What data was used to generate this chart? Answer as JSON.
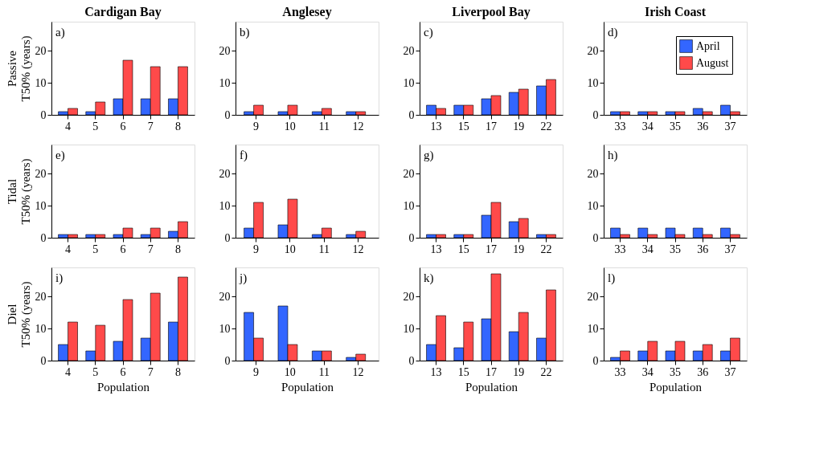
{
  "chart_data": [
    {
      "type": "bar",
      "title": "Cardigan Bay",
      "ylabel": "Passive\nT50%  (years)",
      "annotations": [
        "a)"
      ],
      "categories": [
        "4",
        "5",
        "6",
        "7",
        "8"
      ],
      "ylim": [
        0,
        29
      ],
      "yticks": [
        0,
        10,
        20
      ],
      "grid": false,
      "series": [
        {
          "color": "#3366ff",
          "values": [
            1,
            1,
            5,
            5,
            5
          ]
        },
        {
          "color": "#ff4a4a",
          "values": [
            2,
            4,
            17,
            15,
            15
          ]
        }
      ]
    },
    {
      "type": "bar",
      "title": "Anglesey",
      "annotations": [
        "b)"
      ],
      "categories": [
        "9",
        "10",
        "11",
        "12"
      ],
      "ylim": [
        0,
        29
      ],
      "yticks": [
        0,
        10,
        20
      ],
      "grid": false,
      "series": [
        {
          "color": "#3366ff",
          "values": [
            1,
            1,
            1,
            1
          ]
        },
        {
          "color": "#ff4a4a",
          "values": [
            3,
            3,
            2,
            1
          ]
        }
      ]
    },
    {
      "type": "bar",
      "title": "Liverpool Bay",
      "annotations": [
        "c)"
      ],
      "categories": [
        "13",
        "15",
        "17",
        "19",
        "22"
      ],
      "ylim": [
        0,
        29
      ],
      "yticks": [
        0,
        10,
        20
      ],
      "grid": false,
      "series": [
        {
          "color": "#3366ff",
          "values": [
            3,
            3,
            5,
            7,
            9
          ]
        },
        {
          "color": "#ff4a4a",
          "values": [
            2,
            3,
            6,
            8,
            11
          ]
        }
      ]
    },
    {
      "type": "bar",
      "title": "Irish Coast",
      "annotations": [
        "d)"
      ],
      "categories": [
        "33",
        "34",
        "35",
        "36",
        "37"
      ],
      "ylim": [
        0,
        29
      ],
      "yticks": [
        0,
        10,
        20
      ],
      "grid": false,
      "legend": "top right",
      "series": [
        {
          "name": "April",
          "color": "#3366ff",
          "values": [
            1,
            1,
            1,
            2,
            3
          ]
        },
        {
          "name": "August",
          "color": "#ff4a4a",
          "values": [
            1,
            1,
            1,
            1,
            1
          ]
        }
      ]
    },
    {
      "type": "bar",
      "ylabel": "Tidal\nT50%  (years)",
      "annotations": [
        "e)"
      ],
      "categories": [
        "4",
        "5",
        "6",
        "7",
        "8"
      ],
      "ylim": [
        0,
        29
      ],
      "yticks": [
        0,
        10,
        20
      ],
      "grid": false,
      "series": [
        {
          "color": "#3366ff",
          "values": [
            1,
            1,
            1,
            1,
            2
          ]
        },
        {
          "color": "#ff4a4a",
          "values": [
            1,
            1,
            3,
            3,
            5
          ]
        }
      ]
    },
    {
      "type": "bar",
      "annotations": [
        "f)"
      ],
      "categories": [
        "9",
        "10",
        "11",
        "12"
      ],
      "ylim": [
        0,
        29
      ],
      "yticks": [
        0,
        10,
        20
      ],
      "grid": false,
      "series": [
        {
          "color": "#3366ff",
          "values": [
            3,
            4,
            1,
            1
          ]
        },
        {
          "color": "#ff4a4a",
          "values": [
            11,
            12,
            3,
            2
          ]
        }
      ]
    },
    {
      "type": "bar",
      "annotations": [
        "g)"
      ],
      "categories": [
        "13",
        "15",
        "17",
        "19",
        "22"
      ],
      "ylim": [
        0,
        29
      ],
      "yticks": [
        0,
        10,
        20
      ],
      "grid": false,
      "series": [
        {
          "color": "#3366ff",
          "values": [
            1,
            1,
            7,
            5,
            1
          ]
        },
        {
          "color": "#ff4a4a",
          "values": [
            1,
            1,
            11,
            6,
            1
          ]
        }
      ]
    },
    {
      "type": "bar",
      "annotations": [
        "h)"
      ],
      "categories": [
        "33",
        "34",
        "35",
        "36",
        "37"
      ],
      "ylim": [
        0,
        29
      ],
      "yticks": [
        0,
        10,
        20
      ],
      "grid": false,
      "series": [
        {
          "color": "#3366ff",
          "values": [
            3,
            3,
            3,
            3,
            3
          ]
        },
        {
          "color": "#ff4a4a",
          "values": [
            1,
            1,
            1,
            1,
            1
          ]
        }
      ]
    },
    {
      "type": "bar",
      "ylabel": "Diel\nT50%  (years)",
      "xlabel": "Population",
      "annotations": [
        "i)"
      ],
      "categories": [
        "4",
        "5",
        "6",
        "7",
        "8"
      ],
      "ylim": [
        0,
        29
      ],
      "yticks": [
        0,
        10,
        20
      ],
      "grid": false,
      "series": [
        {
          "color": "#3366ff",
          "values": [
            5,
            3,
            6,
            7,
            12
          ]
        },
        {
          "color": "#ff4a4a",
          "values": [
            12,
            11,
            19,
            21,
            26
          ]
        }
      ]
    },
    {
      "type": "bar",
      "xlabel": "Population",
      "annotations": [
        "j)"
      ],
      "categories": [
        "9",
        "10",
        "11",
        "12"
      ],
      "ylim": [
        0,
        29
      ],
      "yticks": [
        0,
        10,
        20
      ],
      "grid": false,
      "series": [
        {
          "color": "#3366ff",
          "values": [
            15,
            17,
            3,
            1
          ]
        },
        {
          "color": "#ff4a4a",
          "values": [
            7,
            5,
            3,
            2
          ]
        }
      ]
    },
    {
      "type": "bar",
      "xlabel": "Population",
      "annotations": [
        "k)"
      ],
      "categories": [
        "13",
        "15",
        "17",
        "19",
        "22"
      ],
      "ylim": [
        0,
        29
      ],
      "yticks": [
        0,
        10,
        20
      ],
      "grid": false,
      "series": [
        {
          "color": "#3366ff",
          "values": [
            5,
            4,
            13,
            9,
            7
          ]
        },
        {
          "color": "#ff4a4a",
          "values": [
            14,
            12,
            27,
            15,
            22
          ]
        }
      ]
    },
    {
      "type": "bar",
      "xlabel": "Population",
      "annotations": [
        "l)"
      ],
      "categories": [
        "33",
        "34",
        "35",
        "36",
        "37"
      ],
      "ylim": [
        0,
        29
      ],
      "yticks": [
        0,
        10,
        20
      ],
      "grid": false,
      "series": [
        {
          "color": "#3366ff",
          "values": [
            1,
            3,
            3,
            3,
            3
          ]
        },
        {
          "color": "#ff4a4a",
          "values": [
            3,
            6,
            6,
            5,
            7
          ]
        }
      ]
    }
  ]
}
